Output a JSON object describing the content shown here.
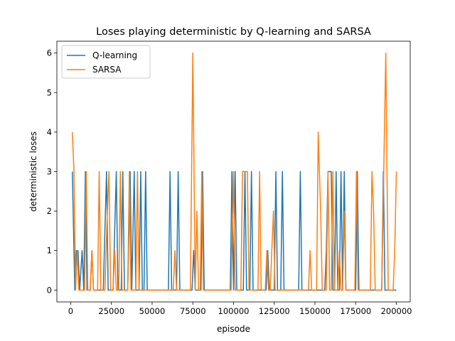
{
  "chart_data": {
    "type": "line",
    "title": "Loses playing deterministic by Q-learning and SARSA",
    "xlabel": "episode",
    "ylabel": "deterministic loses",
    "xlim": [
      -8500,
      208500
    ],
    "ylim": [
      -0.3,
      6.3
    ],
    "x_ticks": [
      {
        "value": 0,
        "label": "0"
      },
      {
        "value": 25000,
        "label": "25000"
      },
      {
        "value": 50000,
        "label": "50000"
      },
      {
        "value": 75000,
        "label": "75000"
      },
      {
        "value": 100000,
        "label": "100000"
      },
      {
        "value": 125000,
        "label": "125000"
      },
      {
        "value": 150000,
        "label": "150000"
      },
      {
        "value": 175000,
        "label": "175000"
      },
      {
        "value": 200000,
        "label": "200000"
      }
    ],
    "y_ticks": [
      {
        "value": 0,
        "label": "0"
      },
      {
        "value": 1,
        "label": "1"
      },
      {
        "value": 2,
        "label": "2"
      },
      {
        "value": 3,
        "label": "3"
      },
      {
        "value": 4,
        "label": "4"
      },
      {
        "value": 5,
        "label": "5"
      },
      {
        "value": 6,
        "label": "6"
      }
    ],
    "grid": false,
    "legend_position": "top-left",
    "series": [
      {
        "name": "Q-learning",
        "color": "#1f77b4",
        "points": [
          [
            1000,
            3
          ],
          [
            2500,
            0
          ],
          [
            3500,
            1
          ],
          [
            4500,
            1
          ],
          [
            5500,
            0
          ],
          [
            7000,
            1
          ],
          [
            8000,
            0
          ],
          [
            9000,
            3
          ],
          [
            10000,
            0
          ],
          [
            12000,
            0
          ],
          [
            13000,
            1
          ],
          [
            14000,
            0
          ],
          [
            20000,
            0
          ],
          [
            22000,
            3
          ],
          [
            23000,
            0
          ],
          [
            26000,
            0
          ],
          [
            28000,
            3
          ],
          [
            29000,
            0
          ],
          [
            31000,
            0
          ],
          [
            32000,
            3
          ],
          [
            33000,
            0
          ],
          [
            35000,
            0
          ],
          [
            36500,
            3
          ],
          [
            37500,
            0
          ],
          [
            39000,
            3
          ],
          [
            40000,
            0
          ],
          [
            42000,
            0
          ],
          [
            43000,
            3
          ],
          [
            44000,
            0
          ],
          [
            45000,
            0
          ],
          [
            46000,
            3
          ],
          [
            47000,
            0
          ],
          [
            60000,
            0
          ],
          [
            61000,
            3
          ],
          [
            62000,
            0
          ],
          [
            65000,
            0
          ],
          [
            66000,
            3
          ],
          [
            67000,
            0
          ],
          [
            74500,
            0
          ],
          [
            75500,
            1
          ],
          [
            76500,
            0
          ],
          [
            80000,
            0
          ],
          [
            81000,
            3
          ],
          [
            82000,
            0
          ],
          [
            98000,
            0
          ],
          [
            99000,
            3
          ],
          [
            100000,
            0
          ],
          [
            101000,
            3
          ],
          [
            102000,
            0
          ],
          [
            106000,
            0
          ],
          [
            107000,
            3
          ],
          [
            108000,
            0
          ],
          [
            110000,
            0
          ],
          [
            111000,
            3
          ],
          [
            112000,
            0
          ],
          [
            120000,
            0
          ],
          [
            121000,
            1
          ],
          [
            122000,
            0
          ],
          [
            125000,
            0
          ],
          [
            126000,
            3
          ],
          [
            127000,
            0
          ],
          [
            129000,
            0
          ],
          [
            130000,
            3
          ],
          [
            131000,
            0
          ],
          [
            140000,
            0
          ],
          [
            141000,
            3
          ],
          [
            142000,
            0
          ],
          [
            156000,
            0
          ],
          [
            157000,
            1
          ],
          [
            158000,
            3
          ],
          [
            160000,
            3
          ],
          [
            161000,
            0
          ],
          [
            162000,
            0
          ],
          [
            163000,
            3
          ],
          [
            164000,
            0
          ],
          [
            165000,
            0
          ],
          [
            166000,
            3
          ],
          [
            167000,
            0
          ],
          [
            168000,
            3
          ],
          [
            169000,
            0
          ],
          [
            175000,
            0
          ],
          [
            176000,
            3
          ],
          [
            177000,
            0
          ],
          [
            191000,
            0
          ],
          [
            192000,
            3
          ],
          [
            193000,
            0
          ],
          [
            200000,
            0
          ]
        ]
      },
      {
        "name": "SARSA",
        "color": "#ff7f0e",
        "points": [
          [
            1000,
            4
          ],
          [
            2000,
            3
          ],
          [
            3000,
            0
          ],
          [
            4000,
            1
          ],
          [
            5000,
            0
          ],
          [
            8500,
            0
          ],
          [
            9500,
            3
          ],
          [
            10500,
            0
          ],
          [
            12000,
            0
          ],
          [
            13000,
            1
          ],
          [
            14000,
            0
          ],
          [
            16500,
            0
          ],
          [
            17500,
            3
          ],
          [
            18500,
            0
          ],
          [
            21000,
            0
          ],
          [
            22500,
            2
          ],
          [
            23500,
            3
          ],
          [
            24500,
            0
          ],
          [
            26000,
            0
          ],
          [
            27000,
            1
          ],
          [
            28000,
            0
          ],
          [
            29500,
            0
          ],
          [
            30500,
            3
          ],
          [
            31500,
            0
          ],
          [
            35000,
            0
          ],
          [
            36000,
            3
          ],
          [
            37000,
            0
          ],
          [
            40000,
            0
          ],
          [
            41000,
            3
          ],
          [
            42000,
            0
          ],
          [
            48000,
            0
          ],
          [
            62000,
            0
          ],
          [
            63000,
            0
          ],
          [
            64000,
            1
          ],
          [
            65000,
            0
          ],
          [
            73500,
            0
          ],
          [
            75000,
            6
          ],
          [
            76500,
            0
          ],
          [
            77500,
            2
          ],
          [
            78500,
            0
          ],
          [
            79500,
            0
          ],
          [
            80500,
            3
          ],
          [
            81500,
            0
          ],
          [
            98500,
            0
          ],
          [
            100000,
            3
          ],
          [
            101000,
            0
          ],
          [
            104500,
            0
          ],
          [
            105500,
            3
          ],
          [
            108500,
            3
          ],
          [
            109500,
            0
          ],
          [
            115000,
            0
          ],
          [
            116000,
            3
          ],
          [
            117000,
            0
          ],
          [
            119500,
            0
          ],
          [
            120500,
            1
          ],
          [
            121500,
            0
          ],
          [
            122500,
            0
          ],
          [
            123500,
            1
          ],
          [
            124500,
            2
          ],
          [
            125500,
            0
          ],
          [
            127500,
            0
          ],
          [
            146000,
            0
          ],
          [
            147000,
            1
          ],
          [
            148000,
            0
          ],
          [
            151000,
            0
          ],
          [
            152000,
            4
          ],
          [
            153500,
            2
          ],
          [
            154500,
            0
          ],
          [
            157000,
            0
          ],
          [
            158000,
            3
          ],
          [
            159000,
            0
          ],
          [
            160000,
            0
          ],
          [
            161000,
            3
          ],
          [
            162000,
            0
          ],
          [
            164000,
            0
          ],
          [
            165000,
            1
          ],
          [
            166000,
            0
          ],
          [
            167000,
            0
          ],
          [
            168000,
            2
          ],
          [
            169000,
            0
          ],
          [
            174500,
            0
          ],
          [
            175500,
            3
          ],
          [
            176500,
            0
          ],
          [
            184000,
            0
          ],
          [
            185000,
            3
          ],
          [
            186000,
            2
          ],
          [
            187000,
            0
          ],
          [
            191000,
            0
          ],
          [
            193500,
            6
          ],
          [
            195000,
            0
          ],
          [
            198000,
            0
          ],
          [
            199000,
            1
          ],
          [
            200000,
            3
          ]
        ]
      }
    ]
  }
}
